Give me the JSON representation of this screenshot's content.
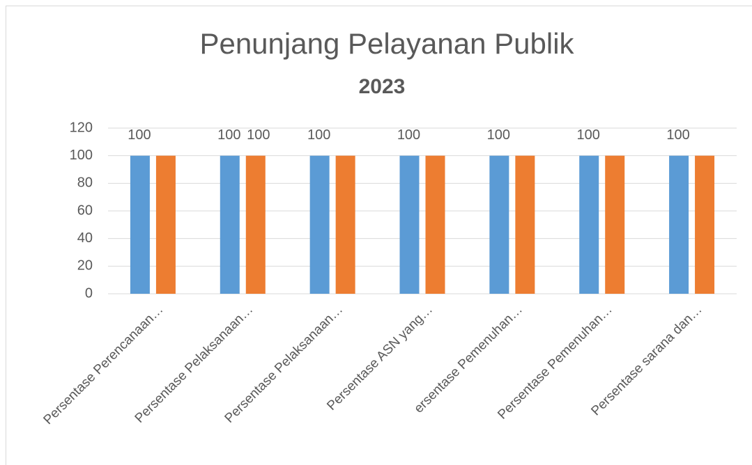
{
  "chart_data": {
    "type": "bar",
    "title": "Penunjang Pelayanan Publik",
    "subtitle": "2023",
    "categories": [
      "Persentase Perencanaan…",
      "Persentase Pelaksanaan…",
      "Persentase  Pelaksanaan…",
      "Persentase ASN yang…",
      "ersentase Pemenuhan…",
      "Persentase Pemenuhan…",
      "Persentase sarana dan…"
    ],
    "series": [
      {
        "color": "#5b9bd5",
        "values": [
          100,
          100,
          100,
          100,
          100,
          100,
          100
        ],
        "value_labels": [
          "100",
          "100",
          "100",
          "100",
          "100",
          "100",
          "100"
        ]
      },
      {
        "color": "#ed7d31",
        "values": [
          100,
          100,
          100,
          100,
          100,
          100,
          100
        ],
        "value_labels": [
          null,
          "100",
          null,
          null,
          null,
          null,
          null
        ]
      }
    ],
    "ylim": [
      0,
      120
    ],
    "yticks": [
      0,
      20,
      40,
      60,
      80,
      100,
      120
    ],
    "grid": true
  }
}
